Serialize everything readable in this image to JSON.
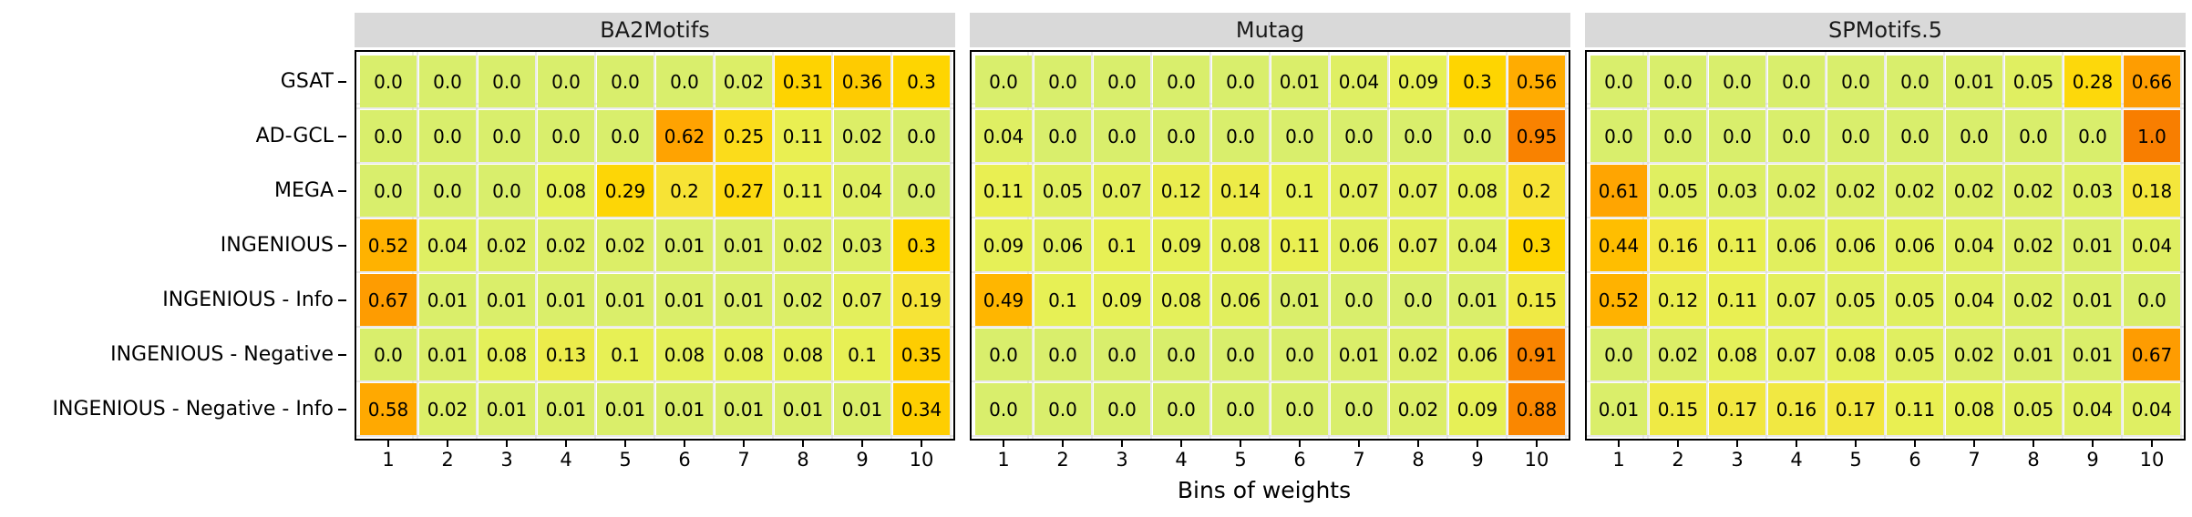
{
  "figure": {
    "xlabel": "Bins of weights",
    "strip_background": "#d9d9d9",
    "bins": [
      "1",
      "2",
      "3",
      "4",
      "5",
      "6",
      "7",
      "8",
      "9",
      "10"
    ],
    "methods": [
      "GSAT",
      "AD-GCL",
      "MEGA",
      "INGENIOUS",
      "INGENIOUS - Info",
      "INGENIOUS - Negative",
      "INGENIOUS - Negative - Info"
    ],
    "colormap_stops": [
      [
        0.0,
        "#d9ee6c"
      ],
      [
        0.1,
        "#e7f055"
      ],
      [
        0.2,
        "#f7e335"
      ],
      [
        0.3,
        "#fed501"
      ],
      [
        0.45,
        "#ffbc00"
      ],
      [
        0.6,
        "#ffa601"
      ],
      [
        0.75,
        "#fc9000"
      ],
      [
        1.0,
        "#f87e00"
      ]
    ]
  },
  "chart_data": [
    {
      "type": "heatmap",
      "title": "BA2Motifs",
      "xlabel": "Bins of weights",
      "x": [
        1,
        2,
        3,
        4,
        5,
        6,
        7,
        8,
        9,
        10
      ],
      "y": [
        "GSAT",
        "AD-GCL",
        "MEGA",
        "INGENIOUS",
        "INGENIOUS - Info",
        "INGENIOUS - Negative",
        "INGENIOUS - Negative - Info"
      ],
      "vmin": 0,
      "vmax": 1,
      "cell_labels_shown": true,
      "values": [
        [
          0.0,
          0.0,
          0.0,
          0.0,
          0.0,
          0.0,
          0.02,
          0.31,
          0.36,
          0.3
        ],
        [
          0.0,
          0.0,
          0.0,
          0.0,
          0.0,
          0.62,
          0.25,
          0.11,
          0.02,
          0.0
        ],
        [
          0.0,
          0.0,
          0.0,
          0.08,
          0.29,
          0.2,
          0.27,
          0.11,
          0.04,
          0.0
        ],
        [
          0.52,
          0.04,
          0.02,
          0.02,
          0.02,
          0.01,
          0.01,
          0.02,
          0.03,
          0.3
        ],
        [
          0.67,
          0.01,
          0.01,
          0.01,
          0.01,
          0.01,
          0.01,
          0.02,
          0.07,
          0.19
        ],
        [
          0.0,
          0.01,
          0.08,
          0.13,
          0.1,
          0.08,
          0.08,
          0.08,
          0.1,
          0.35
        ],
        [
          0.58,
          0.02,
          0.01,
          0.01,
          0.01,
          0.01,
          0.01,
          0.01,
          0.01,
          0.34
        ]
      ]
    },
    {
      "type": "heatmap",
      "title": "Mutag",
      "xlabel": "Bins of weights",
      "x": [
        1,
        2,
        3,
        4,
        5,
        6,
        7,
        8,
        9,
        10
      ],
      "y": [
        "GSAT",
        "AD-GCL",
        "MEGA",
        "INGENIOUS",
        "INGENIOUS - Info",
        "INGENIOUS - Negative",
        "INGENIOUS - Negative - Info"
      ],
      "vmin": 0,
      "vmax": 1,
      "cell_labels_shown": true,
      "values": [
        [
          0.0,
          0.0,
          0.0,
          0.0,
          0.0,
          0.01,
          0.04,
          0.09,
          0.3,
          0.56
        ],
        [
          0.04,
          0.0,
          0.0,
          0.0,
          0.0,
          0.0,
          0.0,
          0.0,
          0.0,
          0.95
        ],
        [
          0.11,
          0.05,
          0.07,
          0.12,
          0.14,
          0.1,
          0.07,
          0.07,
          0.08,
          0.2
        ],
        [
          0.09,
          0.06,
          0.1,
          0.09,
          0.08,
          0.11,
          0.06,
          0.07,
          0.04,
          0.3
        ],
        [
          0.49,
          0.1,
          0.09,
          0.08,
          0.06,
          0.01,
          0.0,
          0.0,
          0.01,
          0.15
        ],
        [
          0.0,
          0.0,
          0.0,
          0.0,
          0.0,
          0.0,
          0.01,
          0.02,
          0.06,
          0.91
        ],
        [
          0.0,
          0.0,
          0.0,
          0.0,
          0.0,
          0.0,
          0.0,
          0.02,
          0.09,
          0.88
        ]
      ]
    },
    {
      "type": "heatmap",
      "title": "SPMotifs.5",
      "xlabel": "Bins of weights",
      "x": [
        1,
        2,
        3,
        4,
        5,
        6,
        7,
        8,
        9,
        10
      ],
      "y": [
        "GSAT",
        "AD-GCL",
        "MEGA",
        "INGENIOUS",
        "INGENIOUS - Info",
        "INGENIOUS - Negative",
        "INGENIOUS - Negative - Info"
      ],
      "vmin": 0,
      "vmax": 1,
      "cell_labels_shown": true,
      "values": [
        [
          0.0,
          0.0,
          0.0,
          0.0,
          0.0,
          0.0,
          0.01,
          0.05,
          0.28,
          0.66
        ],
        [
          0.0,
          0.0,
          0.0,
          0.0,
          0.0,
          0.0,
          0.0,
          0.0,
          0.0,
          1.0
        ],
        [
          0.61,
          0.05,
          0.03,
          0.02,
          0.02,
          0.02,
          0.02,
          0.02,
          0.03,
          0.18
        ],
        [
          0.44,
          0.16,
          0.11,
          0.06,
          0.06,
          0.06,
          0.04,
          0.02,
          0.01,
          0.04
        ],
        [
          0.52,
          0.12,
          0.11,
          0.07,
          0.05,
          0.05,
          0.04,
          0.02,
          0.01,
          0.0
        ],
        [
          0.0,
          0.02,
          0.08,
          0.07,
          0.08,
          0.05,
          0.02,
          0.01,
          0.01,
          0.67
        ],
        [
          0.01,
          0.15,
          0.17,
          0.16,
          0.17,
          0.11,
          0.08,
          0.05,
          0.04,
          0.04
        ]
      ]
    }
  ]
}
